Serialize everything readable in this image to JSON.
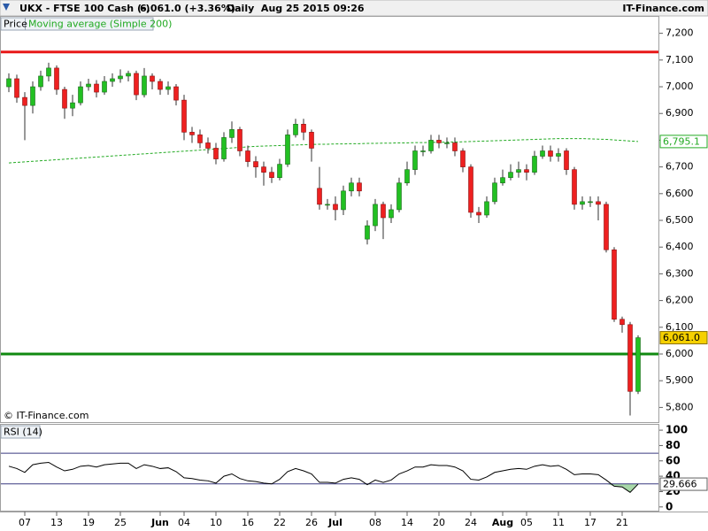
{
  "header": {
    "symbol": "UKX - FTSE 100 Cash (-)",
    "quote": "6,061.0 (+3.36%)",
    "period": "Daily  Aug 25 2015 09:26",
    "brand": "IT-Finance.com",
    "copyright": "© IT-Finance.com"
  },
  "chart_data": [
    {
      "type": "candlestick",
      "name": "Price",
      "categories": [
        null,
        null,
        "07",
        null,
        null,
        null,
        "13",
        null,
        null,
        null,
        "19",
        null,
        null,
        null,
        "25",
        null,
        null,
        null,
        null,
        "Jun",
        null,
        null,
        "04",
        null,
        null,
        null,
        "10",
        null,
        null,
        null,
        "16",
        null,
        null,
        null,
        "22",
        null,
        null,
        null,
        "26",
        null,
        null,
        "Jul",
        null,
        null,
        null,
        null,
        "08",
        null,
        null,
        null,
        "14",
        null,
        null,
        null,
        "20",
        null,
        null,
        null,
        "24",
        null,
        null,
        null,
        "Aug",
        null,
        null,
        "05",
        null,
        null,
        null,
        "11",
        null,
        null,
        null,
        "17",
        null,
        null,
        null,
        "21",
        null,
        null
      ],
      "open": [
        7000,
        7030,
        6960,
        6930,
        7000,
        7040,
        7070,
        6990,
        6920,
        6940,
        7000,
        7010,
        6980,
        7020,
        7030,
        7040,
        7050,
        6970,
        7040,
        7020,
        6990,
        7000,
        6950,
        6830,
        6820,
        6790,
        6770,
        6730,
        6810,
        6840,
        6760,
        6720,
        6700,
        6680,
        6660,
        6710,
        6820,
        6860,
        6830,
        6620,
        6560,
        6560,
        6540,
        6610,
        6640,
        6430,
        6480,
        6560,
        6510,
        6540,
        6640,
        6690,
        6760,
        6760,
        6800,
        6790,
        6790,
        6760,
        6700,
        6530,
        6520,
        6570,
        6640,
        6660,
        6680,
        6690,
        6680,
        6740,
        6760,
        6740,
        6760,
        6690,
        6560,
        6570,
        6570,
        6560,
        6390,
        6130,
        6110,
        5860
      ],
      "high": [
        7050,
        7045,
        6980,
        7020,
        7060,
        7090,
        7080,
        7000,
        6970,
        7020,
        7030,
        7025,
        7040,
        7050,
        7065,
        7060,
        7060,
        7070,
        7050,
        7030,
        7020,
        7010,
        6970,
        6850,
        6840,
        6810,
        6790,
        6830,
        6870,
        6850,
        6780,
        6740,
        6720,
        6700,
        6730,
        6840,
        6880,
        6880,
        6840,
        6700,
        6580,
        6590,
        6630,
        6660,
        6660,
        6500,
        6580,
        6570,
        6560,
        6660,
        6720,
        6780,
        6780,
        6820,
        6820,
        6810,
        6810,
        6770,
        6710,
        6550,
        6590,
        6660,
        6690,
        6710,
        6720,
        6710,
        6760,
        6780,
        6780,
        6770,
        6770,
        6700,
        6590,
        6590,
        6590,
        6570,
        6400,
        6140,
        6120,
        6070
      ],
      "low": [
        6980,
        6940,
        6800,
        6900,
        6985,
        7020,
        6970,
        6880,
        6890,
        6930,
        6985,
        6960,
        6970,
        7000,
        7015,
        7020,
        6950,
        6960,
        6990,
        6970,
        6970,
        6930,
        6800,
        6790,
        6770,
        6750,
        6710,
        6720,
        6790,
        6740,
        6700,
        6660,
        6630,
        6640,
        6650,
        6700,
        6810,
        6800,
        6720,
        6540,
        6540,
        6500,
        6520,
        6590,
        6590,
        6410,
        6460,
        6430,
        6490,
        6530,
        6630,
        6670,
        6740,
        6750,
        6770,
        6770,
        6740,
        6680,
        6510,
        6490,
        6510,
        6560,
        6630,
        6650,
        6660,
        6650,
        6670,
        6730,
        6720,
        6720,
        6670,
        6540,
        6540,
        6550,
        6500,
        6380,
        6120,
        6080,
        5770,
        5850
      ],
      "close": [
        7030,
        6960,
        6930,
        7000,
        7040,
        7070,
        6990,
        6920,
        6940,
        7000,
        7010,
        6980,
        7020,
        7030,
        7040,
        7050,
        6970,
        7040,
        7020,
        6990,
        7000,
        6950,
        6830,
        6820,
        6790,
        6770,
        6730,
        6810,
        6840,
        6760,
        6720,
        6700,
        6680,
        6660,
        6710,
        6820,
        6860,
        6830,
        6770,
        6560,
        6560,
        6540,
        6610,
        6640,
        6610,
        6480,
        6560,
        6510,
        6540,
        6640,
        6690,
        6760,
        6760,
        6800,
        6790,
        6790,
        6760,
        6700,
        6530,
        6520,
        6570,
        6640,
        6660,
        6680,
        6690,
        6680,
        6740,
        6760,
        6740,
        6750,
        6690,
        6560,
        6570,
        6570,
        6560,
        6390,
        6130,
        6110,
        5860,
        6061
      ],
      "last_label": "6,061.0",
      "up_color": "#22c022",
      "down_color": "#ee2020",
      "ma": {
        "name": "Moving average (Simple 200)",
        "color": "#22aa22",
        "values": [
          6715,
          6717,
          6719,
          6721,
          6723,
          6725,
          6727,
          6729,
          6731,
          6733,
          6735,
          6737,
          6739,
          6741,
          6743,
          6745,
          6747,
          6749,
          6751,
          6753,
          6755,
          6757,
          6759,
          6761,
          6763,
          6765,
          6767,
          6769,
          6771,
          6773,
          6775,
          6777,
          6778,
          6779,
          6780,
          6781,
          6782,
          6783,
          6784,
          6785,
          6785,
          6786,
          6786,
          6787,
          6787,
          6788,
          6788,
          6789,
          6789,
          6790,
          6790,
          6791,
          6791,
          6792,
          6792,
          6793,
          6793,
          6794,
          6795,
          6796,
          6797,
          6798,
          6799,
          6800,
          6801,
          6802,
          6803,
          6804,
          6805,
          6806,
          6806,
          6806,
          6806,
          6805,
          6804,
          6803,
          6801,
          6799,
          6797,
          6795.1
        ],
        "last_label": "6,795.1"
      },
      "lines": [
        {
          "value": 7130,
          "color": "#e81818"
        },
        {
          "value": 6000,
          "color": "#108a10"
        }
      ],
      "ylim": [
        5745,
        7265
      ],
      "yticks": [
        {
          "value": 5800,
          "label": "5,800"
        },
        {
          "value": 5900,
          "label": "5,900"
        },
        {
          "value": 6000,
          "label": "6,000"
        },
        {
          "value": 6100,
          "label": "6,100"
        },
        {
          "value": 6200,
          "label": "6,200"
        },
        {
          "value": 6300,
          "label": "6,300"
        },
        {
          "value": 6400,
          "label": "6,400"
        },
        {
          "value": 6500,
          "label": "6,500"
        },
        {
          "value": 6600,
          "label": "6,600"
        },
        {
          "value": 6700,
          "label": "6,700"
        },
        {
          "value": 6800,
          "label": "6,800"
        },
        {
          "value": 6900,
          "label": "6,900"
        },
        {
          "value": 7000,
          "label": "7,000"
        },
        {
          "value": 7100,
          "label": "7,100"
        },
        {
          "value": 7200,
          "label": "7,200"
        }
      ]
    },
    {
      "type": "line",
      "name": "RSI (14)",
      "color": "#000000",
      "values": [
        53,
        50,
        45,
        55,
        57,
        58,
        52,
        47,
        49,
        53,
        54,
        52,
        55,
        56,
        57,
        57,
        50,
        55,
        53,
        50,
        51,
        46,
        38,
        37,
        35,
        34,
        31,
        40,
        43,
        37,
        34,
        33,
        31,
        30,
        36,
        46,
        50,
        47,
        43,
        32,
        32,
        31,
        36,
        38,
        36,
        29,
        35,
        32,
        35,
        43,
        47,
        52,
        52,
        55,
        54,
        54,
        52,
        47,
        36,
        35,
        39,
        45,
        47,
        49,
        50,
        49,
        53,
        55,
        53,
        54,
        49,
        42,
        43,
        43,
        42,
        35,
        27,
        26,
        19,
        29.666
      ],
      "levels": [
        70,
        30
      ],
      "fill_below": 30,
      "ylim": [
        -6,
        107
      ],
      "yticks": [
        0,
        20,
        40,
        60,
        80,
        100
      ]
    }
  ]
}
